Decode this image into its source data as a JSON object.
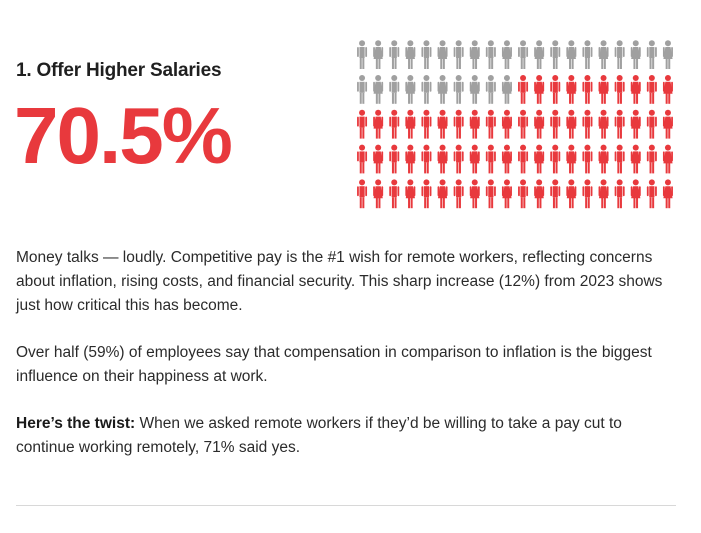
{
  "section": {
    "heading": "1. Offer Higher Salaries",
    "stat": "70.5%"
  },
  "pictogram": {
    "total_figures": 100,
    "highlighted_figures": 70,
    "colors": {
      "highlight": "#e8393d",
      "base": "#a0a0a0"
    },
    "icon": "person-icon"
  },
  "paragraphs": {
    "p1": "Money talks — loudly. Competitive pay is the #1 wish for remote workers, reflecting concerns about inflation, rising costs, and financial security. This sharp increase (12%) from 2023 shows just how critical this has become.",
    "p2": "Over half (59%) of employees say that compensation in comparison to inflation is the biggest influence on their happiness at work.",
    "p3_label": "Here’s the twist:",
    "p3_text": " When we asked remote workers if they’d be willing to take a pay cut to continue working remotely, 71% said yes."
  },
  "colors": {
    "accent": "#e8393d",
    "text": "#2b2b2b",
    "divider": "#d8d8d8"
  }
}
